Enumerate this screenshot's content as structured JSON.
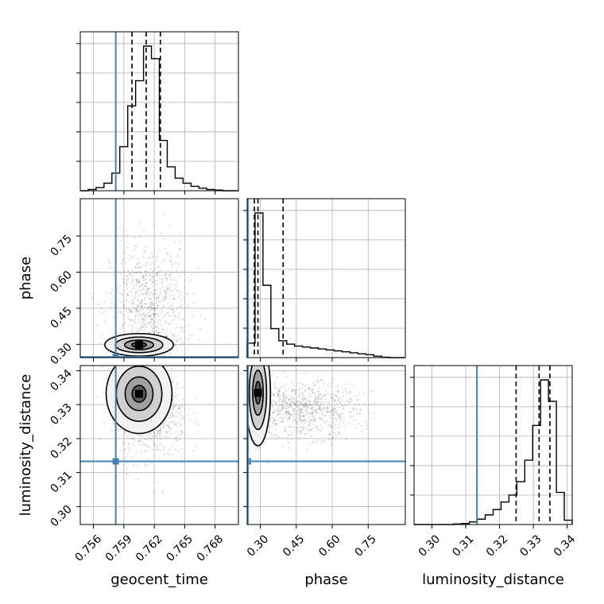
{
  "chart_data": {
    "type": "corner",
    "parameters": [
      "geocent_time",
      "phase",
      "luminosity_distance"
    ],
    "axis_labels": {
      "geocent_time": "geocent_time",
      "phase": "phase",
      "luminosity_distance": "luminosity_distance"
    },
    "ranges": {
      "geocent_time": [
        0.7547,
        0.7703
      ],
      "phase": [
        0.245,
        0.905
      ],
      "luminosity_distance": [
        0.2947,
        0.3415
      ]
    },
    "ticks": {
      "geocent_time": [
        "0.756",
        "0.759",
        "0.762",
        "0.765",
        "0.768"
      ],
      "phase": [
        "0.30",
        "0.45",
        "0.60",
        "0.75"
      ],
      "luminosity_distance": [
        "0.30",
        "0.31",
        "0.32",
        "0.33",
        "0.34"
      ]
    },
    "truths": {
      "geocent_time": 0.7582,
      "phase": 0.248,
      "luminosity_distance": 0.3133
    },
    "truth_color": "#4682b4",
    "quantiles": {
      "geocent_time": [
        0.7598,
        0.7612,
        0.7626
      ],
      "phase": [
        0.275,
        0.29,
        0.395
      ],
      "luminosity_distance": [
        0.3249,
        0.3317,
        0.3349
      ]
    },
    "histograms": {
      "geocent_time": {
        "edges": [
          0.7547,
          0.75548,
          0.75626,
          0.75704,
          0.75782,
          0.7586,
          0.75938,
          0.76016,
          0.76094,
          0.76172,
          0.7625,
          0.76328,
          0.76406,
          0.76484,
          0.76562,
          0.7664,
          0.76718,
          0.76796,
          0.76874,
          0.76952,
          0.7703
        ],
        "counts": [
          0,
          2,
          5,
          12,
          28,
          70,
          135,
          175,
          230,
          210,
          80,
          38,
          20,
          12,
          7,
          4,
          2,
          1,
          0,
          0
        ]
      },
      "phase": {
        "edges": [
          0.245,
          0.278,
          0.311,
          0.344,
          0.377,
          0.41,
          0.443,
          0.476,
          0.509,
          0.542,
          0.575,
          0.608,
          0.641,
          0.674,
          0.707,
          0.74,
          0.773,
          0.806,
          0.839,
          0.872,
          0.905
        ],
        "counts": [
          30,
          300,
          150,
          60,
          35,
          28,
          24,
          22,
          20,
          18,
          16,
          14,
          12,
          10,
          8,
          6,
          3,
          1,
          0,
          0
        ]
      },
      "luminosity_distance": {
        "edges": [
          0.2947,
          0.29704,
          0.29938,
          0.30172,
          0.30406,
          0.3064,
          0.30874,
          0.31108,
          0.31342,
          0.31576,
          0.3181,
          0.32044,
          0.32278,
          0.32512,
          0.32746,
          0.3298,
          0.33214,
          0.33448,
          0.33682,
          0.33916,
          0.3415
        ],
        "counts": [
          0,
          0,
          0,
          0,
          0,
          1,
          2,
          5,
          10,
          18,
          28,
          42,
          55,
          80,
          120,
          185,
          270,
          230,
          60,
          8
        ]
      }
    },
    "scatter_2d": {
      "phase_vs_geocent_time": {
        "clusters": [
          {
            "x_mean": 0.7612,
            "y_mean": 0.305,
            "x_sd": 0.0013,
            "y_sd": 0.018,
            "weight": 0.45
          },
          {
            "x_mean": 0.7614,
            "y_mean": 0.46,
            "x_sd": 0.0019,
            "y_sd": 0.13,
            "weight": 0.55
          }
        ],
        "mode": [
          0.7605,
          0.298
        ]
      },
      "luminosity_distance_vs_geocent_time": {
        "clusters": [
          {
            "x_mean": 0.7612,
            "y_mean": 0.3315,
            "x_sd": 0.00125,
            "y_sd": 0.0045,
            "weight": 0.7
          },
          {
            "x_mean": 0.7617,
            "y_mean": 0.326,
            "x_sd": 0.0018,
            "y_sd": 0.007,
            "weight": 0.3
          }
        ],
        "mode": [
          0.7605,
          0.3332
        ]
      },
      "luminosity_distance_vs_phase": {
        "clusters": [
          {
            "x_mean": 0.285,
            "y_mean": 0.331,
            "x_sd": 0.02,
            "y_sd": 0.006,
            "weight": 0.4
          },
          {
            "x_mean": 0.47,
            "y_mean": 0.3285,
            "x_sd": 0.12,
            "y_sd": 0.004,
            "weight": 0.6
          }
        ],
        "mode": [
          0.29,
          0.3335
        ]
      }
    },
    "grid": true
  }
}
